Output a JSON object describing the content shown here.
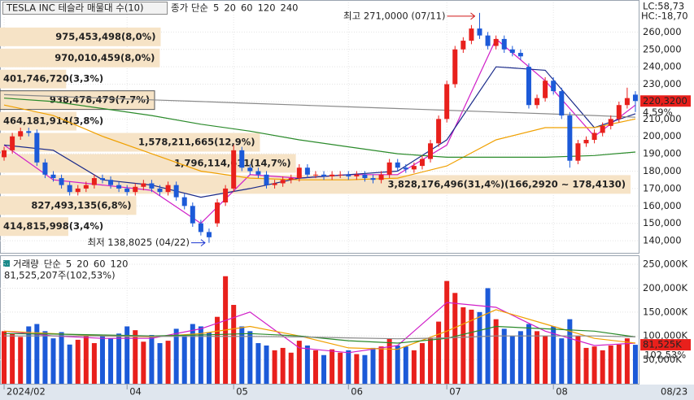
{
  "chart_data": [
    {
      "type": "candlestick",
      "title": "TESLA INC 테슬라 매물대 수(10)",
      "legend_title": "종가 단순",
      "legend_title_color": "#c41fb4",
      "up_color": "#e8201c",
      "down_color": "#1c5ad8",
      "x": [
        0,
        1,
        2,
        3,
        4,
        5,
        6,
        7,
        8,
        9,
        10,
        11,
        12,
        13,
        14,
        15,
        16,
        17,
        18,
        19,
        20,
        21,
        22,
        23,
        24,
        25,
        26,
        27,
        28,
        29,
        30,
        31,
        32,
        33,
        34,
        35,
        36,
        37,
        38,
        39,
        40,
        41,
        42,
        43,
        44,
        45,
        46,
        47,
        48,
        49,
        50,
        51,
        52,
        53,
        54,
        55,
        56,
        57,
        58,
        59,
        60,
        61,
        62,
        63,
        64,
        65,
        66,
        67,
        68,
        69,
        70,
        71,
        72,
        73,
        74,
        75,
        76,
        77
      ],
      "open": [
        188,
        192,
        200,
        203,
        202,
        185,
        178,
        176,
        172,
        168,
        170,
        172,
        176,
        175,
        172,
        170,
        168,
        171,
        173,
        170,
        168,
        172,
        165,
        160,
        150,
        145,
        150,
        162,
        170,
        192,
        182,
        180,
        178,
        172,
        173,
        175,
        176,
        182,
        178,
        178,
        177,
        178,
        178,
        177,
        178,
        176,
        175,
        178,
        185,
        182,
        181,
        183,
        187,
        196,
        210,
        230,
        250,
        255,
        262,
        258,
        252,
        256,
        250,
        248,
        240,
        218,
        222,
        232,
        226,
        212,
        186,
        196,
        198,
        202,
        206,
        210,
        218,
        224
      ],
      "high": [
        194,
        202,
        205,
        205,
        204,
        187,
        180,
        178,
        174,
        172,
        174,
        178,
        178,
        177,
        174,
        172,
        173,
        175,
        175,
        172,
        174,
        174,
        167,
        162,
        152,
        147,
        164,
        172,
        195,
        194,
        184,
        182,
        180,
        175,
        177,
        178,
        184,
        184,
        180,
        180,
        180,
        180,
        180,
        180,
        180,
        178,
        180,
        187,
        187,
        184,
        185,
        189,
        198,
        212,
        232,
        252,
        257,
        264,
        271,
        260,
        258,
        258,
        252,
        250,
        242,
        224,
        234,
        234,
        228,
        214,
        198,
        200,
        204,
        208,
        212,
        220,
        228,
        226
      ],
      "low": [
        186,
        190,
        198,
        200,
        183,
        176,
        174,
        170,
        166,
        166,
        168,
        170,
        173,
        170,
        168,
        166,
        166,
        169,
        168,
        166,
        166,
        163,
        158,
        148,
        143,
        138.8025,
        148,
        160,
        168,
        180,
        178,
        176,
        170,
        170,
        171,
        173,
        174,
        176,
        176,
        175,
        175,
        176,
        175,
        175,
        174,
        173,
        173,
        176,
        180,
        179,
        179,
        181,
        185,
        194,
        208,
        228,
        248,
        253,
        256,
        250,
        250,
        248,
        246,
        244,
        216,
        216,
        220,
        224,
        210,
        182,
        184,
        194,
        196,
        200,
        204,
        208,
        216,
        214
      ],
      "close": [
        192,
        200,
        203,
        202,
        185,
        178,
        176,
        172,
        168,
        170,
        172,
        176,
        175,
        172,
        170,
        168,
        171,
        173,
        170,
        168,
        172,
        165,
        160,
        150,
        145,
        142,
        162,
        170,
        192,
        182,
        180,
        178,
        172,
        173,
        175,
        176,
        182,
        178,
        178,
        177,
        178,
        178,
        177,
        178,
        176,
        175,
        178,
        185,
        182,
        181,
        183,
        187,
        196,
        210,
        230,
        250,
        255,
        262,
        258,
        252,
        256,
        250,
        248,
        246,
        218,
        222,
        232,
        226,
        212,
        186,
        196,
        198,
        202,
        206,
        210,
        218,
        222,
        220.32
      ],
      "series": [
        {
          "name": "5",
          "color": "#d01ec8",
          "x": [
            0,
            6,
            12,
            18,
            24,
            30,
            36,
            42,
            48,
            54,
            60,
            66,
            72,
            77
          ],
          "values": [
            195,
            175,
            172,
            169,
            150,
            178,
            176,
            178,
            178,
            195,
            256,
            232,
            200,
            218
          ]
        },
        {
          "name": "20",
          "color": "#1a2a8a",
          "x": [
            0,
            6,
            12,
            18,
            24,
            30,
            36,
            42,
            48,
            54,
            60,
            66,
            72,
            77
          ],
          "values": [
            195,
            192,
            175,
            172,
            165,
            170,
            176,
            178,
            180,
            198,
            240,
            238,
            205,
            213
          ]
        },
        {
          "name": "60",
          "color": "#f0a000",
          "x": [
            0,
            6,
            12,
            18,
            24,
            30,
            36,
            42,
            48,
            54,
            60,
            66,
            72,
            77
          ],
          "values": [
            218,
            212,
            200,
            190,
            180,
            176,
            175,
            175,
            176,
            183,
            198,
            205,
            205,
            210
          ]
        },
        {
          "name": "120",
          "color": "#2a8a2a",
          "x": [
            0,
            6,
            12,
            18,
            24,
            30,
            36,
            42,
            48,
            54,
            60,
            66,
            72,
            77
          ],
          "values": [
            222,
            220,
            216,
            212,
            207,
            203,
            198,
            194,
            190,
            188,
            188,
            188,
            189,
            191
          ]
        },
        {
          "name": "240",
          "color": "#8a8a8a",
          "x": [
            0,
            6,
            12,
            18,
            24,
            30,
            36,
            42,
            48,
            54,
            60,
            66,
            72,
            77
          ],
          "values": [
            224,
            223,
            222,
            221,
            220,
            219,
            218,
            217,
            216,
            215,
            214,
            213,
            212,
            211
          ]
        }
      ],
      "volume_profile": {
        "bins": [
          142.05,
          154.171,
          166.292,
          178.413,
          190.534,
          202.655,
          214.776,
          226.897,
          239.018,
          251.139,
          263.26
        ],
        "values": [
          414815998,
          827493135,
          3828176496,
          1796114611,
          1578211665,
          464181914,
          938478479,
          401746720,
          970010459,
          975453498
        ],
        "value_labels": [
          "414,815,998(3,4%)",
          "827,493,135(6,8%)",
          "3,828,176,496(31,4%)(166,2920 ~ 178,4130)",
          "1,796,114,611(14,7%)",
          "1,578,211,665(12,9%)",
          "464,181,914(3,8%)",
          "938,478,479(7,7%)",
          "401,746,720(3,3%)",
          "970,010,459(8,0%)",
          "975,453,498(8,0%)"
        ],
        "color": "#f6e3c6",
        "label_color": "#5a3810"
      },
      "xlim": [
        -0.5,
        77.5
      ],
      "ylim": [
        133.5,
        277
      ],
      "yticks": [
        {
          "value": 140,
          "label": "140,000"
        },
        {
          "value": 150,
          "label": "150,000"
        },
        {
          "value": 160,
          "label": "160,000"
        },
        {
          "value": 170,
          "label": "170,000"
        },
        {
          "value": 180,
          "label": "180,000"
        },
        {
          "value": 190,
          "label": "190,000"
        },
        {
          "value": 200,
          "label": "200,000"
        },
        {
          "value": 210,
          "label": "210,000"
        },
        {
          "value": 220,
          "label": "220,000"
        },
        {
          "value": 230,
          "label": "230,000"
        },
        {
          "value": 240,
          "label": "240,000"
        },
        {
          "value": 250,
          "label": "250,000"
        },
        {
          "value": 260,
          "label": "260,000"
        }
      ],
      "grid": true,
      "annotations": {
        "high": "최고 271,0000 (07/11)",
        "low": "최저 138,8025 (04/22)",
        "lc": "LC:58,73",
        "hc": "HC:-18,70",
        "last_close": "220,3200",
        "change": "4,59%"
      }
    },
    {
      "type": "bar",
      "legend_title": "거래량",
      "legend_title_color": "#1a8a8a",
      "legend_method": "단순",
      "legend_method_color": "#c41fb4",
      "values": [
        110000000,
        105000000,
        98000000,
        120000000,
        125000000,
        110000000,
        95000000,
        108000000,
        82000000,
        92000000,
        100000000,
        85000000,
        100000000,
        95000000,
        105000000,
        120000000,
        112000000,
        88000000,
        102000000,
        85000000,
        90000000,
        115000000,
        100000000,
        125000000,
        120000000,
        108000000,
        140000000,
        225000000,
        165000000,
        120000000,
        110000000,
        85000000,
        80000000,
        70000000,
        75000000,
        65000000,
        90000000,
        80000000,
        70000000,
        60000000,
        72000000,
        65000000,
        70000000,
        62000000,
        60000000,
        75000000,
        78000000,
        95000000,
        80000000,
        78000000,
        70000000,
        85000000,
        95000000,
        130000000,
        215000000,
        190000000,
        160000000,
        155000000,
        150000000,
        200000000,
        135000000,
        115000000,
        100000000,
        110000000,
        125000000,
        110000000,
        100000000,
        120000000,
        95000000,
        135000000,
        100000000,
        75000000,
        78000000,
        70000000,
        80000000,
        82000000,
        95000000,
        81525207
      ],
      "series": [
        {
          "name": "5",
          "color": "#d01ec8",
          "x": [
            0,
            6,
            12,
            18,
            24,
            30,
            36,
            42,
            48,
            54,
            60,
            66,
            72,
            77
          ],
          "values": [
            110000000,
            100000000,
            95000000,
            95000000,
            115000000,
            150000000,
            75000000,
            65000000,
            80000000,
            170000000,
            160000000,
            110000000,
            80000000,
            85000000
          ]
        },
        {
          "name": "20",
          "color": "#f0a000",
          "x": [
            0,
            6,
            12,
            18,
            24,
            30,
            36,
            42,
            48,
            54,
            60,
            66,
            72,
            77
          ],
          "values": [
            110000000,
            105000000,
            100000000,
            98000000,
            105000000,
            120000000,
            100000000,
            75000000,
            72000000,
            110000000,
            155000000,
            125000000,
            95000000,
            85000000
          ]
        },
        {
          "name": "60",
          "color": "#2a8a2a",
          "x": [
            0,
            6,
            12,
            18,
            24,
            30,
            36,
            42,
            48,
            54,
            60,
            66,
            72,
            77
          ],
          "values": [
            105000000,
            104000000,
            102000000,
            100000000,
            102000000,
            105000000,
            100000000,
            90000000,
            85000000,
            95000000,
            120000000,
            115000000,
            110000000,
            98000000
          ]
        },
        {
          "name": "120",
          "color": "#8a8a8a",
          "x": [
            0,
            6,
            12,
            18,
            24,
            30,
            36,
            42,
            48,
            54,
            60,
            66,
            72,
            77
          ],
          "values": [
            100000000,
            100000000,
            100000000,
            99000000,
            99000000,
            99000000,
            98000000,
            96000000,
            94000000,
            96000000,
            100000000,
            100000000,
            100000000,
            98000000
          ]
        }
      ],
      "ylim": [
        0,
        262000000
      ],
      "yticks": [
        {
          "value": 50000000,
          "label": "50,000K"
        },
        {
          "value": 100000000,
          "label": "100,000K"
        },
        {
          "value": 150000000,
          "label": "150,000K"
        },
        {
          "value": 200000000,
          "label": "200,000K"
        },
        {
          "value": 250000000,
          "label": "250,000K"
        }
      ],
      "xticks": [
        {
          "value": 0,
          "label": "2024/02"
        },
        {
          "value": 15,
          "label": "04"
        },
        {
          "value": 28,
          "label": "05"
        },
        {
          "value": 42,
          "label": "06"
        },
        {
          "value": 54,
          "label": "07"
        },
        {
          "value": 67,
          "label": "08"
        }
      ],
      "last_date": "08/23",
      "grid": true,
      "annotations": {
        "volume": "81,525,207주(102,53%)",
        "last": "81,525K",
        "ratio": "102,53%"
      }
    }
  ]
}
